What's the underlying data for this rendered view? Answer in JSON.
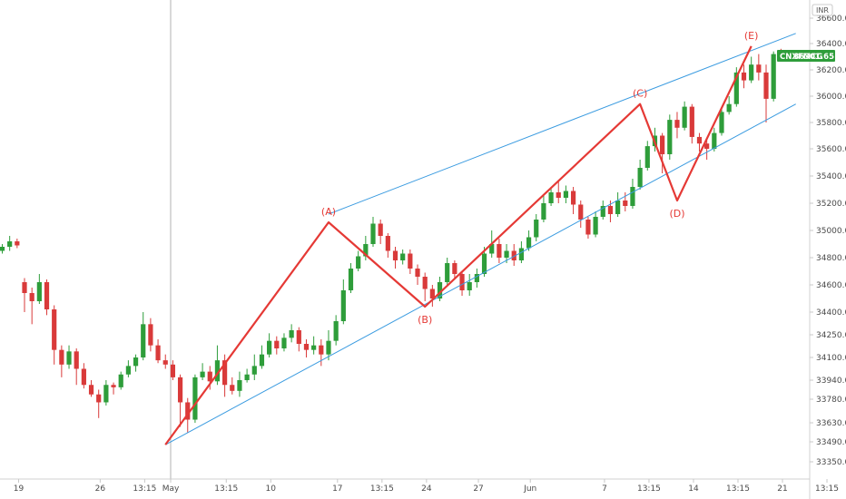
{
  "chart_data": {
    "type": "candlestick",
    "symbol": "CNXFMCG",
    "last_price": "36301.65",
    "currency": "INR",
    "colors": {
      "up": "#2e9d3a",
      "down": "#d93a3a",
      "wave": "#e53935",
      "channel": "#3a9be0",
      "badge": "#2e9d3a",
      "crosshair": "#9e9e9e"
    },
    "ylim": [
      33200,
      36700
    ],
    "x_ticks": [
      {
        "label": "19",
        "i": 0
      },
      {
        "label": "26",
        "i": 11
      },
      {
        "label": "13:15",
        "i": 17
      },
      {
        "label": "May",
        "i": 22
      },
      {
        "label": "13:15",
        "i": 28
      },
      {
        "label": "10",
        "i": 34
      },
      {
        "label": "17",
        "i": 43
      },
      {
        "label": "13:15",
        "i": 49
      },
      {
        "label": "24",
        "i": 55
      },
      {
        "label": "27",
        "i": 62
      },
      {
        "label": "Jun",
        "i": 69
      },
      {
        "label": "7",
        "i": 79
      },
      {
        "label": "13:15",
        "i": 85
      },
      {
        "label": "14",
        "i": 91
      },
      {
        "label": "13:15",
        "i": 97
      },
      {
        "label": "21",
        "i": 103
      },
      {
        "label": "13:15",
        "i": 109
      }
    ],
    "y_ticks": [
      "36600.00",
      "36400.00",
      "36200.00",
      "36000.00",
      "35800.00",
      "35600.00",
      "35400.00",
      "35200.00",
      "35000.00",
      "34800.00",
      "34600.00",
      "34400.00",
      "34250.00",
      "34100.00",
      "33940.00",
      "33780.00",
      "33630.00",
      "33490.00",
      "33350.00"
    ],
    "y_tick_values": [
      36600,
      36400,
      36200,
      36000,
      35800,
      35600,
      35400,
      35200,
      35000,
      34800,
      34600,
      34400,
      34250,
      34100,
      33940,
      33780,
      33630,
      33490,
      33350
    ],
    "wave_points": [
      {
        "label": "",
        "i": 22,
        "v": 33470
      },
      {
        "label": "(A)",
        "i": 44,
        "v": 35060
      },
      {
        "label": "(B)",
        "i": 57,
        "v": 34440
      },
      {
        "label": "(C)",
        "i": 86,
        "v": 35940
      },
      {
        "label": "(D)",
        "i": 91,
        "v": 35220
      },
      {
        "label": "(E)",
        "i": 101,
        "v": 36380
      }
    ],
    "channel_upper": [
      {
        "i": 44,
        "v": 35120
      },
      {
        "i": 107,
        "v": 36480
      }
    ],
    "channel_lower": [
      {
        "i": 22,
        "v": 33470
      },
      {
        "i": 107,
        "v": 35940
      }
    ],
    "candles": [
      [
        34850,
        34880,
        34830,
        34900
      ],
      [
        34880,
        34920,
        34850,
        34960
      ],
      [
        34920,
        34890,
        34870,
        34940
      ],
      [
        34620,
        34540,
        34400,
        34650
      ],
      [
        34540,
        34480,
        34320,
        34580
      ],
      [
        34480,
        34620,
        34460,
        34680
      ],
      [
        34620,
        34420,
        34380,
        34640
      ],
      [
        34420,
        34150,
        34050,
        34450
      ],
      [
        34150,
        34050,
        33960,
        34180
      ],
      [
        34050,
        34140,
        34020,
        34180
      ],
      [
        34140,
        34020,
        33900,
        34160
      ],
      [
        34020,
        33900,
        33870,
        34060
      ],
      [
        33900,
        33820,
        33800,
        33940
      ],
      [
        33820,
        33760,
        33660,
        33860
      ],
      [
        33760,
        33900,
        33740,
        33940
      ],
      [
        33900,
        33880,
        33820,
        33920
      ],
      [
        33880,
        33980,
        33860,
        34000
      ],
      [
        33980,
        34040,
        33960,
        34080
      ],
      [
        34040,
        34100,
        34000,
        34120
      ],
      [
        34100,
        34320,
        34080,
        34400
      ],
      [
        34320,
        34180,
        34140,
        34360
      ],
      [
        34180,
        34080,
        34060,
        34220
      ],
      [
        34080,
        34050,
        34020,
        34120
      ],
      [
        34050,
        33960,
        33940,
        34080
      ],
      [
        33960,
        33760,
        33600,
        33980
      ],
      [
        33760,
        33650,
        33560,
        33790
      ],
      [
        33650,
        33960,
        33630,
        33980
      ],
      [
        33960,
        34000,
        33940,
        34060
      ],
      [
        34000,
        33930,
        33860,
        34040
      ],
      [
        33930,
        34080,
        33900,
        34180
      ],
      [
        34080,
        33900,
        33800,
        34120
      ],
      [
        33900,
        33850,
        33820,
        33960
      ],
      [
        33850,
        33940,
        33800,
        34000
      ],
      [
        33940,
        33980,
        33920,
        34020
      ],
      [
        33980,
        34040,
        33940,
        34120
      ],
      [
        34040,
        34120,
        34020,
        34180
      ],
      [
        34120,
        34210,
        34100,
        34260
      ],
      [
        34210,
        34160,
        34120,
        34240
      ],
      [
        34160,
        34230,
        34140,
        34260
      ],
      [
        34230,
        34280,
        34200,
        34320
      ],
      [
        34280,
        34190,
        34140,
        34300
      ],
      [
        34190,
        34150,
        34100,
        34220
      ],
      [
        34150,
        34180,
        34120,
        34240
      ],
      [
        34180,
        34120,
        34040,
        34220
      ],
      [
        34120,
        34210,
        34080,
        34280
      ],
      [
        34210,
        34340,
        34180,
        34380
      ],
      [
        34340,
        34560,
        34320,
        34640
      ],
      [
        34560,
        34720,
        34540,
        34760
      ],
      [
        34720,
        34810,
        34700,
        34850
      ],
      [
        34810,
        34900,
        34780,
        34960
      ],
      [
        34900,
        35050,
        34880,
        35100
      ],
      [
        35050,
        34960,
        34900,
        35080
      ],
      [
        34960,
        34850,
        34800,
        34980
      ],
      [
        34850,
        34780,
        34720,
        34880
      ],
      [
        34780,
        34830,
        34750,
        34860
      ],
      [
        34830,
        34720,
        34680,
        34860
      ],
      [
        34720,
        34660,
        34600,
        34750
      ],
      [
        34660,
        34570,
        34480,
        34690
      ],
      [
        34570,
        34500,
        34440,
        34600
      ],
      [
        34500,
        34620,
        34480,
        34660
      ],
      [
        34620,
        34760,
        34600,
        34800
      ],
      [
        34760,
        34680,
        34640,
        34780
      ],
      [
        34680,
        34560,
        34520,
        34700
      ],
      [
        34560,
        34620,
        34520,
        34680
      ],
      [
        34620,
        34680,
        34580,
        34720
      ],
      [
        34680,
        34830,
        34660,
        34880
      ],
      [
        34830,
        34900,
        34800,
        35000
      ],
      [
        34900,
        34800,
        34760,
        34940
      ],
      [
        34800,
        34850,
        34760,
        34900
      ],
      [
        34850,
        34780,
        34740,
        34900
      ],
      [
        34780,
        34870,
        34760,
        34920
      ],
      [
        34870,
        34950,
        34850,
        35000
      ],
      [
        34950,
        35080,
        34920,
        35120
      ],
      [
        35080,
        35200,
        35060,
        35260
      ],
      [
        35200,
        35280,
        35180,
        35320
      ],
      [
        35280,
        35240,
        35200,
        35360
      ],
      [
        35240,
        35290,
        35200,
        35330
      ],
      [
        35290,
        35190,
        35120,
        35320
      ],
      [
        35190,
        35080,
        35020,
        35220
      ],
      [
        35080,
        34970,
        34940,
        35100
      ],
      [
        34970,
        35100,
        34950,
        35140
      ],
      [
        35100,
        35180,
        35080,
        35220
      ],
      [
        35180,
        35120,
        35060,
        35220
      ],
      [
        35120,
        35220,
        35100,
        35280
      ],
      [
        35220,
        35180,
        35140,
        35280
      ],
      [
        35180,
        35320,
        35160,
        35380
      ],
      [
        35320,
        35460,
        35300,
        35520
      ],
      [
        35460,
        35620,
        35440,
        35660
      ],
      [
        35620,
        35700,
        35580,
        35760
      ],
      [
        35700,
        35560,
        35420,
        35720
      ],
      [
        35560,
        35820,
        35520,
        35860
      ],
      [
        35820,
        35760,
        35680,
        35880
      ],
      [
        35760,
        35920,
        35740,
        35960
      ],
      [
        35920,
        35690,
        35640,
        35940
      ],
      [
        35690,
        35640,
        35580,
        35720
      ],
      [
        35640,
        35600,
        35520,
        35680
      ],
      [
        35600,
        35720,
        35580,
        35760
      ],
      [
        35720,
        35880,
        35700,
        35920
      ],
      [
        35880,
        35940,
        35860,
        36000
      ],
      [
        35940,
        36180,
        35920,
        36220
      ],
      [
        36180,
        36120,
        36060,
        36240
      ],
      [
        36120,
        36240,
        36100,
        36300
      ],
      [
        36240,
        36180,
        36120,
        36320
      ],
      [
        36180,
        35980,
        35800,
        36240
      ],
      [
        35980,
        36320,
        35960,
        36340
      ],
      [
        36320,
        36300,
        36280,
        36360
      ]
    ]
  }
}
